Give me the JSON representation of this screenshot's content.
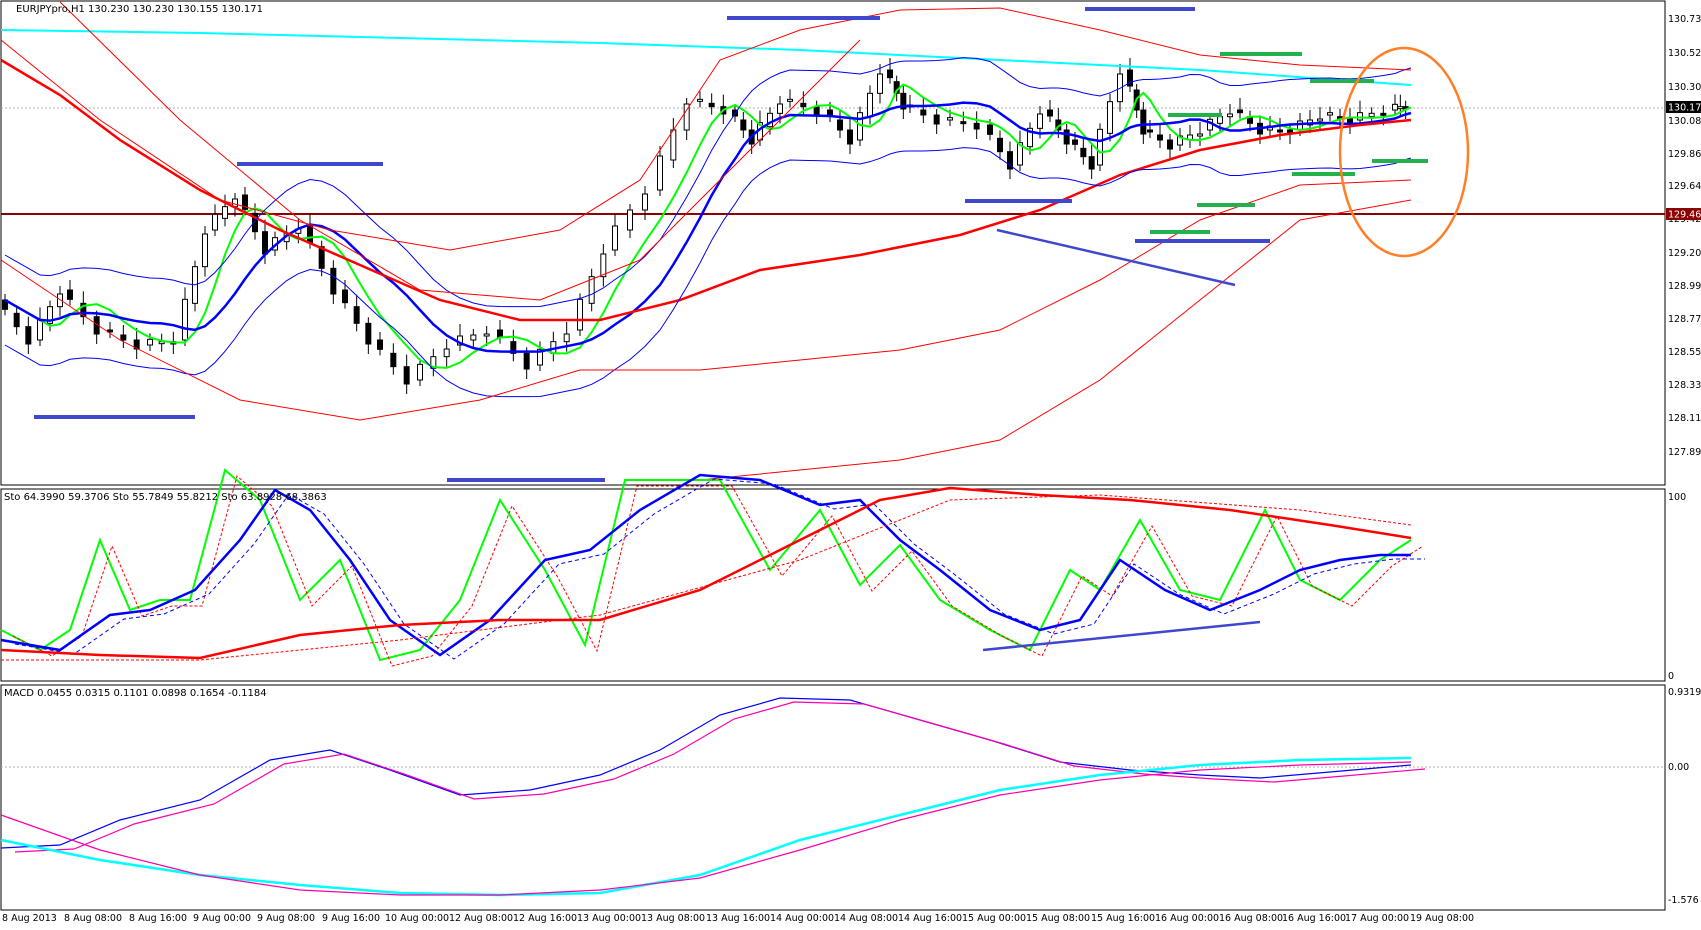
{
  "main_panel": {
    "title": "EURJPYpro,H1  130.230 130.230 130.155 130.171",
    "price_axis": [
      "130.735",
      "130.520",
      "130.300",
      "130.080",
      "129.865",
      "129.645",
      "129.425",
      "129.205",
      "128.990",
      "128.770",
      "128.550",
      "128.335",
      "128.115",
      "127.895"
    ],
    "current_price_label": "130.171",
    "level_label": "129.467",
    "colors": {
      "bg": "#ffffff",
      "up_candle": "#ffffff",
      "down_candle": "#000000",
      "ma_green": "#00ff00",
      "ma_blue": "#0000ff",
      "ma_red": "#ff0000",
      "ma_cyan": "#00ffff",
      "level_line": "#8b0000",
      "annotation_blue": "#3f48cc",
      "annotation_green": "#22b14c",
      "annotation_ellipse": "#ff7f27"
    }
  },
  "stoch_panel": {
    "title": "Sto 64.3990 59.3706  Sto 55.7849 55.8212  Sto 63.8928 68.3863",
    "axis": [
      "100",
      "0"
    ]
  },
  "macd_panel": {
    "title": "MACD 0.0455 0.0315 0.1101 0.0898 0.1654 -0.1184",
    "axis": [
      "0.9319",
      "0.00",
      "-1.576"
    ]
  },
  "time_axis": [
    "8 Aug 2013",
    "8 Aug 08:00",
    "8 Aug 16:00",
    "9 Aug 00:00",
    "9 Aug 08:00",
    "9 Aug 16:00",
    "10 Aug 00:00",
    "12 Aug 08:00",
    "12 Aug 16:00",
    "13 Aug 00:00",
    "13 Aug 08:00",
    "13 Aug 16:00",
    "14 Aug 00:00",
    "14 Aug 08:00",
    "14 Aug 16:00",
    "15 Aug 00:00",
    "15 Aug 08:00",
    "15 Aug 16:00",
    "16 Aug 00:00",
    "16 Aug 08:00",
    "16 Aug 16:00",
    "17 Aug 00:00",
    "19 Aug 08:00"
  ]
}
